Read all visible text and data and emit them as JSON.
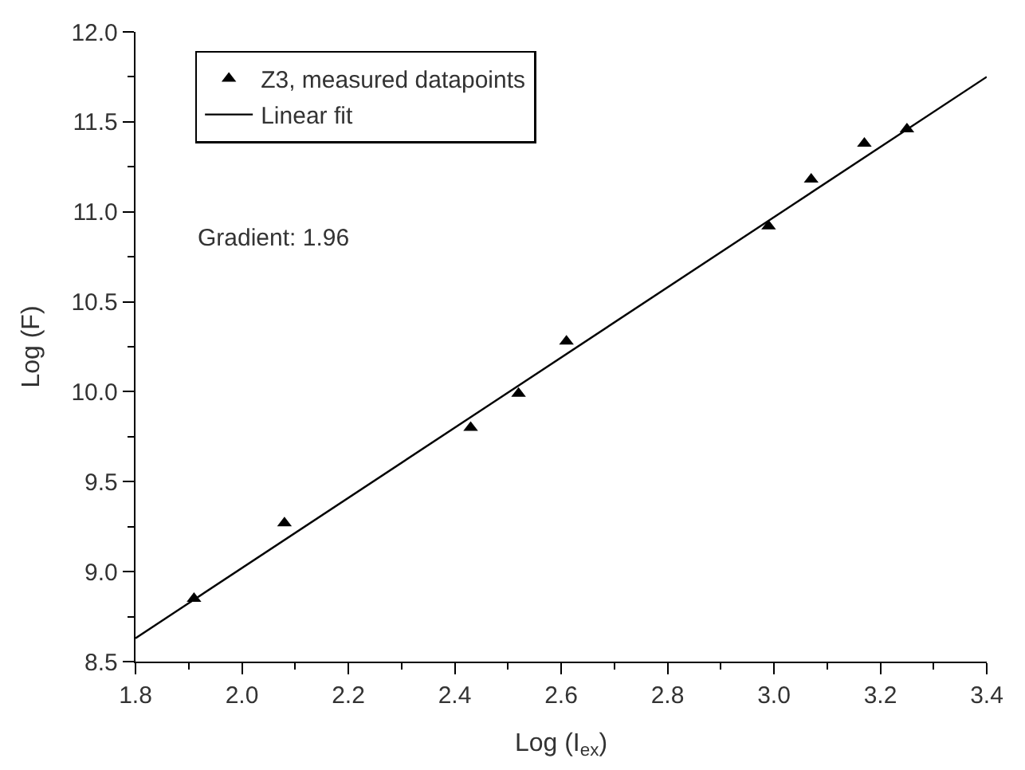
{
  "chart_data": {
    "type": "scatter",
    "xlabel": "Log (I$_{ex}$)",
    "ylabel": "Log (F)",
    "annotations": [
      "Gradient: 1.96"
    ],
    "series": [
      {
        "name": "Z3, measured datapoints",
        "marker": "triangle",
        "color": "#000000",
        "x": [
          1.91,
          2.08,
          2.43,
          2.52,
          2.61,
          2.99,
          3.07,
          3.17,
          3.25
        ],
        "values": [
          8.85,
          9.27,
          9.8,
          9.99,
          10.28,
          10.92,
          11.18,
          11.38,
          11.46
        ]
      },
      {
        "name": "Linear fit",
        "type": "line",
        "marker": "none",
        "line_style": "solid",
        "color": "#000000",
        "x": [
          1.8,
          3.4
        ],
        "values": [
          8.63,
          11.75
        ]
      }
    ],
    "xlim": [
      1.8,
      3.4
    ],
    "xticks": [
      {
        "value": 1.8,
        "label": "1.8"
      },
      {
        "value": 2.0,
        "label": "2.0"
      },
      {
        "value": 2.2,
        "label": "2.2"
      },
      {
        "value": 2.4,
        "label": "2.4"
      },
      {
        "value": 2.6,
        "label": "2.6"
      },
      {
        "value": 2.8,
        "label": "2.8"
      },
      {
        "value": 3.0,
        "label": "3.0"
      },
      {
        "value": 3.2,
        "label": "3.2"
      },
      {
        "value": 3.4,
        "label": "3.4"
      }
    ],
    "ylim": [
      8.5,
      12.0
    ],
    "yticks": [
      {
        "value": 8.5,
        "label": "8.5"
      },
      {
        "value": 9.0,
        "label": "9.0"
      },
      {
        "value": 9.5,
        "label": "9.5"
      },
      {
        "value": 10.0,
        "label": "10.0"
      },
      {
        "value": 10.5,
        "label": "10.5"
      },
      {
        "value": 11.0,
        "label": "11.0"
      },
      {
        "value": 11.5,
        "label": "11.5"
      },
      {
        "value": 12.0,
        "label": "12.0"
      }
    ],
    "grid": false,
    "legend": "top left"
  }
}
